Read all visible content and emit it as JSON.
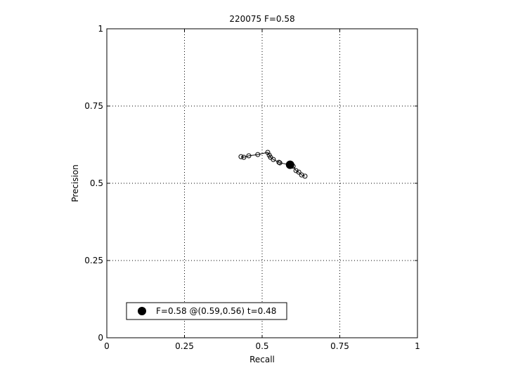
{
  "chart_data": {
    "type": "line",
    "title": "220075 F=0.58",
    "xlabel": "Recall",
    "ylabel": "Precision",
    "xlim": [
      0,
      1
    ],
    "ylim": [
      0,
      1
    ],
    "grid": true,
    "xticks": [
      0,
      0.25,
      0.5,
      0.75,
      1
    ],
    "yticks": [
      0,
      0.25,
      0.5,
      0.75,
      1
    ],
    "xtick_labels": [
      "0",
      "0.25",
      "0.5",
      "0.75",
      "1"
    ],
    "ytick_labels": [
      "0",
      "0.25",
      "0.5",
      "0.75",
      "1"
    ],
    "series": [
      {
        "marker": "open-circle",
        "color": "#000000",
        "points": [
          [
            0.432,
            0.586
          ],
          [
            0.441,
            0.584
          ],
          [
            0.457,
            0.589
          ],
          [
            0.486,
            0.593
          ],
          [
            0.518,
            0.6
          ],
          [
            0.523,
            0.591
          ],
          [
            0.527,
            0.584
          ],
          [
            0.536,
            0.577
          ],
          [
            0.554,
            0.568
          ],
          [
            0.557,
            0.566
          ],
          [
            0.59,
            0.56
          ],
          [
            0.6,
            0.555
          ],
          [
            0.609,
            0.541
          ],
          [
            0.618,
            0.536
          ],
          [
            0.627,
            0.527
          ],
          [
            0.638,
            0.523
          ]
        ]
      }
    ],
    "best_point": {
      "x": 0.59,
      "y": 0.56,
      "marker": "filled-circle",
      "color": "#000000"
    },
    "legend": {
      "label": "F=0.58 @(0.59,0.56) t=0.48",
      "placement": "bottom-left"
    }
  }
}
